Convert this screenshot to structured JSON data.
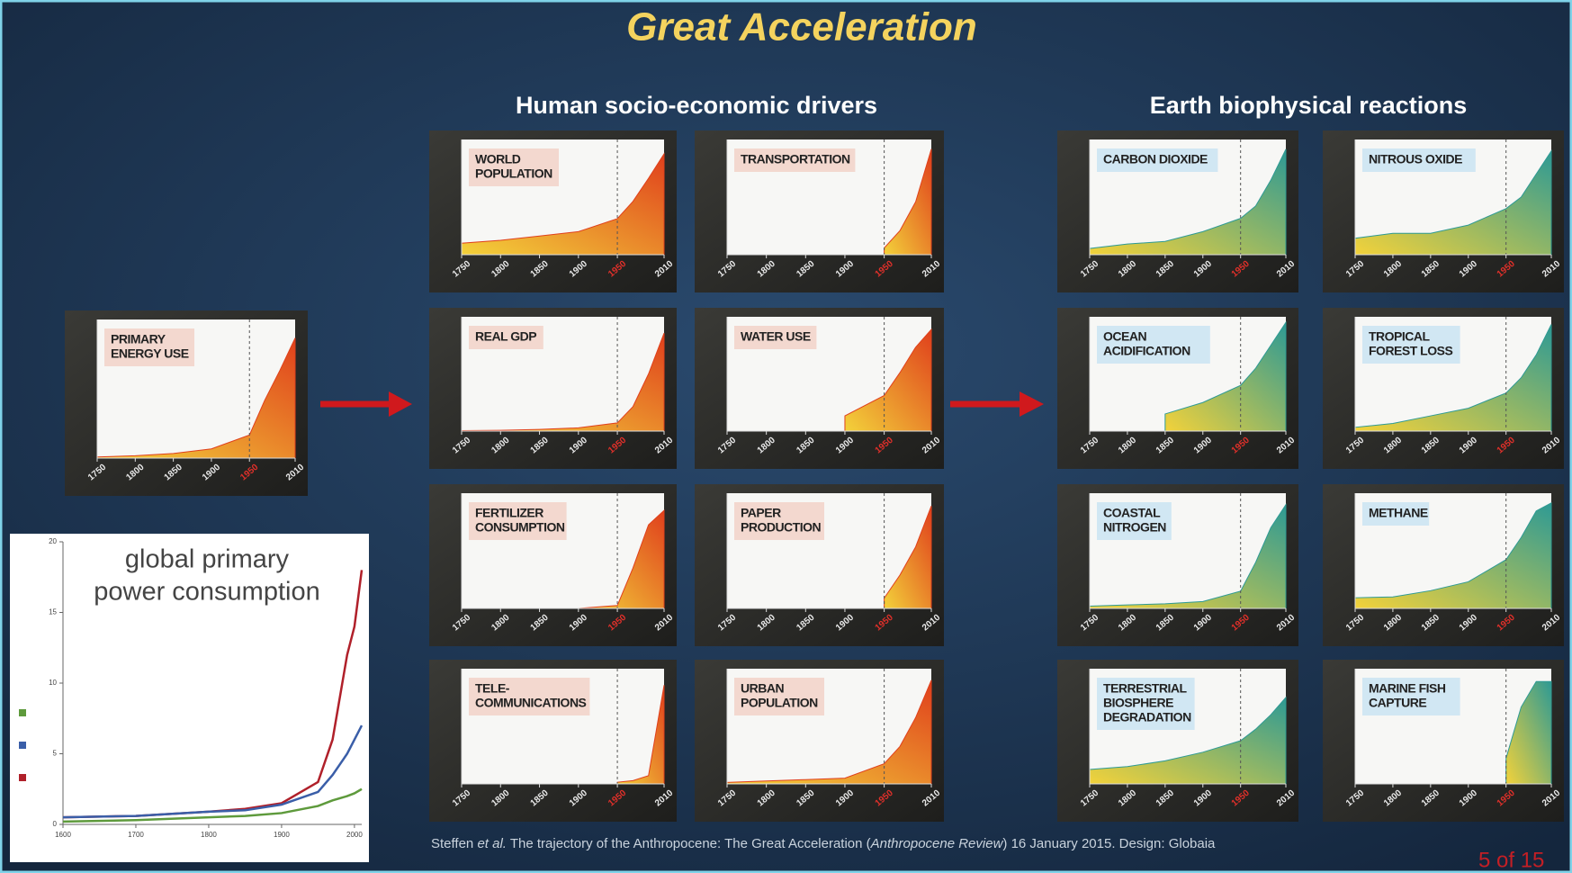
{
  "title": "Great Acceleration",
  "headings": [
    "Human socio-economic drivers",
    "Earth biophysical reactions"
  ],
  "footer": [
    "Steffen ",
    "et al.",
    " The trajectory of the Anthropocene: The Great Acceleration (",
    "Anthropocene Review",
    ") 16 January 2015. Design: Globaia"
  ],
  "page_number": "5 of 15",
  "chart_data": [
    {
      "type": "line",
      "title": [
        "global primary",
        "power consumption"
      ],
      "x": [
        1600,
        1700,
        1800,
        1850,
        1900,
        1950,
        1970,
        1990,
        2000,
        2010
      ],
      "series": [
        {
          "color": "#b0202a",
          "values": [
            0.5,
            0.6,
            0.9,
            1.1,
            1.5,
            3,
            6,
            12,
            14,
            18
          ]
        },
        {
          "color": "#3a5ea8",
          "values": [
            0.5,
            0.6,
            0.9,
            1.0,
            1.4,
            2.3,
            3.5,
            5,
            6,
            7
          ]
        },
        {
          "color": "#5e9a3c",
          "values": [
            0.2,
            0.3,
            0.5,
            0.6,
            0.8,
            1.3,
            1.7,
            2.0,
            2.2,
            2.5
          ]
        }
      ],
      "xlim": [
        1600,
        2010
      ],
      "xticks": [
        1600,
        1700,
        1800,
        1900,
        2000
      ],
      "ylim": [
        0,
        20
      ],
      "yticks": [
        0,
        5,
        10,
        15,
        20
      ]
    },
    {
      "type": "area",
      "title": [
        "PRIMARY",
        "ENERGY USE"
      ],
      "color": "#e0401c",
      "marker_x": 1950,
      "x": [
        1750,
        1800,
        1850,
        1900,
        1950,
        1970,
        1990,
        2010
      ],
      "values": [
        5,
        10,
        20,
        40,
        100,
        250,
        380,
        520
      ],
      "xlim": [
        1750,
        2010
      ],
      "xticks": [
        1750,
        1800,
        1850,
        1900,
        1950,
        2010
      ],
      "ylim": [
        0,
        600
      ]
    },
    {
      "type": "area",
      "title": [
        "WORLD",
        "POPULATION"
      ],
      "color": "#e0401c",
      "marker_x": 1950,
      "x": [
        1750,
        1800,
        1850,
        1900,
        1950,
        1970,
        1990,
        2010
      ],
      "values": [
        0.8,
        1,
        1.3,
        1.6,
        2.5,
        3.7,
        5.3,
        7
      ],
      "xlim": [
        1750,
        2010
      ],
      "xticks": [
        1750,
        1800,
        1850,
        1900,
        1950,
        2010
      ],
      "ylim": [
        0,
        8
      ]
    },
    {
      "type": "area",
      "title": [
        "TRANSPORTATION"
      ],
      "color": "#e0401c",
      "marker_x": 1950,
      "x": [
        1750,
        1800,
        1850,
        1900,
        1950,
        1970,
        1990,
        2010
      ],
      "values": [
        null,
        null,
        null,
        null,
        70,
        250,
        550,
        1100
      ],
      "xlim": [
        1750,
        2010
      ],
      "xticks": [
        1750,
        1800,
        1850,
        1900,
        1950,
        2010
      ],
      "ylim": [
        0,
        1200
      ]
    },
    {
      "type": "area",
      "title": [
        "REAL GDP"
      ],
      "color": "#e0401c",
      "marker_x": 1950,
      "x": [
        1750,
        1800,
        1850,
        1900,
        1950,
        1970,
        1990,
        2010
      ],
      "values": [
        0.3,
        0.5,
        1,
        2,
        5,
        15,
        35,
        60
      ],
      "xlim": [
        1750,
        2010
      ],
      "xticks": [
        1750,
        1800,
        1850,
        1900,
        1950,
        2010
      ],
      "ylim": [
        0,
        70
      ]
    },
    {
      "type": "area",
      "title": [
        "WATER USE"
      ],
      "color": "#e0401c",
      "marker_x": 1950,
      "x": [
        1750,
        1800,
        1850,
        1900,
        1950,
        1970,
        1990,
        2010
      ],
      "values": [
        null,
        null,
        null,
        0.6,
        1.4,
        2.3,
        3.3,
        4
      ],
      "xlim": [
        1750,
        2010
      ],
      "xticks": [
        1750,
        1800,
        1850,
        1900,
        1950,
        2010
      ],
      "ylim": [
        0,
        4.5
      ]
    },
    {
      "type": "area",
      "title": [
        "FERTILIZER",
        "CONSUMPTION"
      ],
      "color": "#e0401c",
      "marker_x": 1950,
      "x": [
        1750,
        1800,
        1850,
        1900,
        1950,
        1970,
        1990,
        2010
      ],
      "values": [
        null,
        null,
        null,
        0,
        5,
        70,
        145,
        170
      ],
      "xlim": [
        1750,
        2010
      ],
      "xticks": [
        1750,
        1800,
        1850,
        1900,
        1950,
        2010
      ],
      "ylim": [
        0,
        200
      ]
    },
    {
      "type": "area",
      "title": [
        "PAPER",
        "PRODUCTION"
      ],
      "color": "#e0401c",
      "marker_x": 1950,
      "x": [
        1750,
        1800,
        1850,
        1900,
        1950,
        1970,
        1990,
        2010
      ],
      "values": [
        null,
        null,
        null,
        null,
        40,
        130,
        240,
        400
      ],
      "xlim": [
        1750,
        2010
      ],
      "xticks": [
        1750,
        1800,
        1850,
        1900,
        1950,
        2010
      ],
      "ylim": [
        0,
        450
      ]
    },
    {
      "type": "area",
      "title": [
        "TELE-",
        "COMMUNICATIONS"
      ],
      "color": "#e0401c",
      "marker_x": 1950,
      "x": [
        1750,
        1800,
        1850,
        1900,
        1950,
        1970,
        1990,
        2010
      ],
      "values": [
        null,
        null,
        null,
        null,
        0.1,
        0.2,
        0.5,
        6
      ],
      "xlim": [
        1750,
        2010
      ],
      "xticks": [
        1750,
        1800,
        1850,
        1900,
        1950,
        2010
      ],
      "ylim": [
        0,
        7
      ]
    },
    {
      "type": "area",
      "title": [
        "URBAN",
        "POPULATION"
      ],
      "color": "#e0401c",
      "marker_x": 1950,
      "x": [
        1750,
        1800,
        1850,
        1900,
        1950,
        1970,
        1990,
        2010
      ],
      "values": [
        0.05,
        0.1,
        0.15,
        0.2,
        0.7,
        1.3,
        2.3,
        3.6
      ],
      "xlim": [
        1750,
        2010
      ],
      "xticks": [
        1750,
        1800,
        1850,
        1900,
        1950,
        2010
      ],
      "ylim": [
        0,
        4
      ]
    },
    {
      "type": "area",
      "title": [
        "CARBON DIOXIDE"
      ],
      "color": "#2e9a94",
      "marker_x": 1950,
      "x": [
        1750,
        1800,
        1850,
        1900,
        1950,
        1970,
        1990,
        2010
      ],
      "values": [
        277,
        282,
        285,
        296,
        311,
        325,
        354,
        389
      ],
      "xlim": [
        1750,
        2010
      ],
      "xticks": [
        1750,
        1800,
        1850,
        1900,
        1950,
        2010
      ],
      "ylim": [
        270,
        400
      ]
    },
    {
      "type": "area",
      "title": [
        "NITROUS OXIDE"
      ],
      "color": "#2e9a94",
      "marker_x": 1950,
      "x": [
        1750,
        1800,
        1850,
        1900,
        1950,
        1970,
        1990,
        2010
      ],
      "values": [
        270,
        273,
        273,
        278,
        288,
        295,
        309,
        323
      ],
      "xlim": [
        1750,
        2010
      ],
      "xticks": [
        1750,
        1800,
        1850,
        1900,
        1950,
        2010
      ],
      "ylim": [
        260,
        330
      ]
    },
    {
      "type": "area",
      "title": [
        "OCEAN",
        "ACIDIFICATION"
      ],
      "color": "#2e9a94",
      "marker_x": 1950,
      "x": [
        1750,
        1800,
        1850,
        1900,
        1950,
        1970,
        1990,
        2010
      ],
      "values": [
        null,
        null,
        6.8,
        7.0,
        7.3,
        7.6,
        8.0,
        8.4
      ],
      "xlim": [
        1750,
        2010
      ],
      "xticks": [
        1750,
        1800,
        1850,
        1900,
        1950,
        2010
      ],
      "ylim": [
        6.5,
        8.5
      ]
    },
    {
      "type": "area",
      "title": [
        "TROPICAL",
        "FOREST LOSS"
      ],
      "color": "#2e9a94",
      "marker_x": 1950,
      "x": [
        1750,
        1800,
        1850,
        1900,
        1950,
        1970,
        1990,
        2010
      ],
      "values": [
        1,
        2,
        4,
        6,
        10,
        14,
        20,
        28
      ],
      "xlim": [
        1750,
        2010
      ],
      "xticks": [
        1750,
        1800,
        1850,
        1900,
        1950,
        2010
      ],
      "ylim": [
        0,
        30
      ]
    },
    {
      "type": "area",
      "title": [
        "COASTAL",
        "NITROGEN"
      ],
      "color": "#2e9a94",
      "marker_x": 1950,
      "x": [
        1750,
        1800,
        1850,
        1900,
        1950,
        1970,
        1990,
        2010
      ],
      "values": [
        2,
        3,
        4,
        6,
        15,
        40,
        70,
        90
      ],
      "xlim": [
        1750,
        2010
      ],
      "xticks": [
        1750,
        1800,
        1850,
        1900,
        1950,
        2010
      ],
      "ylim": [
        0,
        100
      ]
    },
    {
      "type": "area",
      "title": [
        "METHANE"
      ],
      "color": "#2e9a94",
      "marker_x": 1950,
      "x": [
        1750,
        1800,
        1850,
        1900,
        1950,
        1970,
        1990,
        2010
      ],
      "values": [
        720,
        730,
        800,
        900,
        1150,
        1400,
        1700,
        1790
      ],
      "xlim": [
        1750,
        2010
      ],
      "xticks": [
        1750,
        1800,
        1850,
        1900,
        1950,
        2010
      ],
      "ylim": [
        600,
        1900
      ]
    },
    {
      "type": "area",
      "title": [
        "TERRESTRIAL",
        "BIOSPHERE",
        "DEGRADATION"
      ],
      "color": "#2e9a94",
      "marker_x": 1950,
      "x": [
        1750,
        1800,
        1850,
        1900,
        1950,
        1970,
        1990,
        2010
      ],
      "values": [
        5,
        6,
        8,
        11,
        15,
        19,
        24,
        30
      ],
      "xlim": [
        1750,
        2010
      ],
      "xticks": [
        1750,
        1800,
        1850,
        1900,
        1950,
        2010
      ],
      "ylim": [
        0,
        40
      ]
    },
    {
      "type": "area",
      "title": [
        "MARINE FISH",
        "CAPTURE"
      ],
      "color": "#2e9a94",
      "marker_x": 1950,
      "x": [
        1750,
        1800,
        1850,
        1900,
        1950,
        1970,
        1990,
        2010
      ],
      "values": [
        null,
        null,
        null,
        null,
        20,
        60,
        80,
        80
      ],
      "xlim": [
        1750,
        2010
      ],
      "xticks": [
        1750,
        1800,
        1850,
        1900,
        1950,
        2010
      ],
      "ylim": [
        0,
        90
      ]
    }
  ]
}
